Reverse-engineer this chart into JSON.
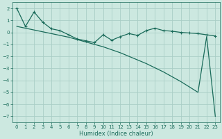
{
  "xlabel": "Humidex (Indice chaleur)",
  "ylabel": "",
  "bg_color": "#cce8e0",
  "grid_color": "#aacec6",
  "line_color": "#1a6b5a",
  "xlim": [
    -0.5,
    23.5
  ],
  "ylim": [
    -7.5,
    2.5
  ],
  "yticks": [
    2,
    1,
    0,
    -1,
    -2,
    -3,
    -4,
    -5,
    -6,
    -7
  ],
  "xticks": [
    0,
    1,
    2,
    3,
    4,
    5,
    6,
    7,
    8,
    9,
    10,
    11,
    12,
    13,
    14,
    15,
    16,
    17,
    18,
    19,
    20,
    21,
    22,
    23
  ],
  "line1_x": [
    0,
    1,
    2,
    3,
    4,
    5,
    6,
    7,
    8,
    9,
    10,
    11,
    12,
    13,
    14,
    15,
    16,
    17,
    18,
    19,
    20,
    21,
    22,
    23
  ],
  "line1_y": [
    2.0,
    0.5,
    1.7,
    0.85,
    0.3,
    0.15,
    -0.2,
    -0.55,
    -0.7,
    -0.85,
    -0.2,
    -0.65,
    -0.35,
    -0.1,
    -0.25,
    0.15,
    0.35,
    0.15,
    0.1,
    0.0,
    -0.05,
    -0.1,
    -0.2,
    -0.3
  ],
  "line2_x": [
    0,
    1,
    2,
    3,
    4,
    5,
    6,
    7,
    8,
    9,
    10,
    11,
    12,
    13,
    14,
    15,
    16,
    17,
    18,
    19,
    20,
    21,
    22,
    23
  ],
  "line2_y": [
    0.5,
    0.35,
    0.2,
    0.05,
    -0.1,
    -0.25,
    -0.4,
    -0.6,
    -0.8,
    -1.0,
    -1.2,
    -1.45,
    -1.7,
    -2.0,
    -2.3,
    -2.6,
    -2.95,
    -3.3,
    -3.7,
    -4.1,
    -4.55,
    -5.0,
    -0.35,
    -7.0
  ]
}
